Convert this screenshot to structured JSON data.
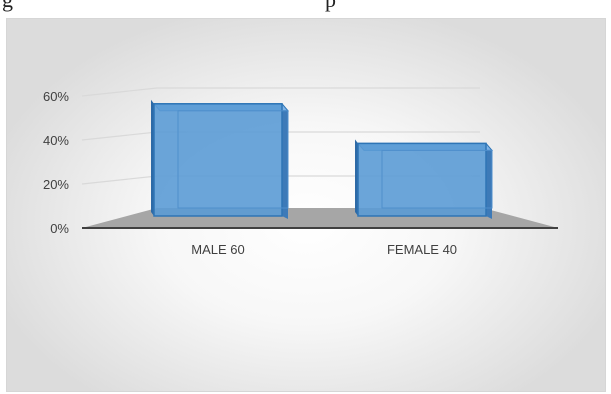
{
  "page_header": {
    "left_fragment": "g",
    "right_fragment": "p"
  },
  "chart_data": {
    "type": "bar",
    "categories": [
      "MALE 60",
      "FEMALE 40"
    ],
    "values": [
      0.56,
      0.38
    ],
    "ylim": [
      0,
      0.6
    ],
    "yticks": [
      "0%",
      "20%",
      "40%",
      "60%"
    ],
    "title": "",
    "xlabel": "",
    "ylabel": "",
    "grid": true,
    "style": "3d",
    "bar_color": "#5b9bd5"
  }
}
